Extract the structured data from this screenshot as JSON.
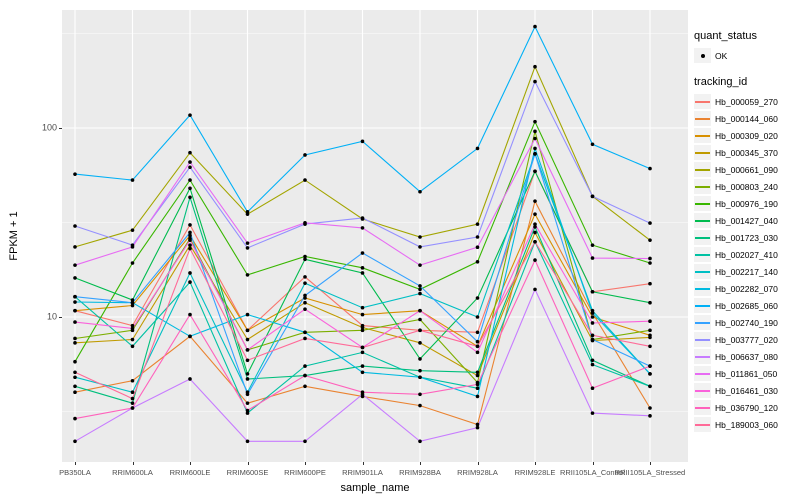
{
  "axes": {
    "x_title": "sample_name",
    "y_title": "FPKM + 1",
    "y_tick_labels": [
      "100",
      "10"
    ]
  },
  "legend": {
    "quant_status_title": "quant_status",
    "quant_ok_label": "OK",
    "tracking_title": "tracking_id"
  },
  "colors": {
    "panel_bg": "#EBEBEB",
    "grid_major": "#FFFFFF",
    "grid_minor": "#F7F7F7",
    "point": "#000000",
    "axis_text": "#4D4D4D",
    "legend_key_bg": "#F2F2F2"
  },
  "chart_data": {
    "type": "line",
    "title": "",
    "xlabel": "sample_name",
    "ylabel": "FPKM + 1",
    "y_scale": "log10",
    "ylim": [
      1.7,
      430
    ],
    "yticks": [
      100,
      10
    ],
    "y_minor_ticks": [
      3.162,
      31.62,
      316.2
    ],
    "grid": true,
    "legend_position": "right",
    "point_marker": "black dot at every sample for quant_status OK",
    "categories": [
      "PB350LA",
      "RRIM600LA",
      "RRIM600LE",
      "RRIM600SE",
      "RRIM600PE",
      "RRIM901LA",
      "RRIM928BA",
      "RRIM928LA",
      "RRIM928LE",
      "RRII105LA_Control",
      "RRII105LA_Stressed"
    ],
    "series": [
      {
        "name": "Hb_000059_270",
        "color": "#F8766D",
        "values": [
          10.8,
          9.0,
          30.7,
          8.5,
          16.3,
          9.0,
          8.5,
          8.3,
          59.0,
          13.6,
          15.0
        ]
      },
      {
        "name": "Hb_000144_060",
        "color": "#EA8331",
        "values": [
          4.0,
          4.6,
          7.9,
          3.5,
          4.3,
          3.8,
          3.4,
          2.7,
          41.0,
          10.5,
          3.3
        ]
      },
      {
        "name": "Hb_000309_020",
        "color": "#D89000",
        "values": [
          10.8,
          11.5,
          27.0,
          8.5,
          12.6,
          10.3,
          10.8,
          7.0,
          35.0,
          10.0,
          8.0
        ]
      },
      {
        "name": "Hb_000345_370",
        "color": "#C09B00",
        "values": [
          7.3,
          7.6,
          24.0,
          7.6,
          11.9,
          8.8,
          7.3,
          4.9,
          28.0,
          7.5,
          7.8
        ]
      },
      {
        "name": "Hb_000661_090",
        "color": "#A3A500",
        "values": [
          23.5,
          28.8,
          74.0,
          35.0,
          53.0,
          33.0,
          26.5,
          31.0,
          211.0,
          43.5,
          25.5
        ]
      },
      {
        "name": "Hb_000803_240",
        "color": "#7CAE00",
        "values": [
          7.7,
          8.5,
          26.0,
          6.7,
          8.3,
          8.5,
          9.7,
          4.5,
          96.0,
          7.6,
          8.5
        ]
      },
      {
        "name": "Hb_000976_190",
        "color": "#39B600",
        "values": [
          5.8,
          19.3,
          53.0,
          16.7,
          20.9,
          18.2,
          14.0,
          19.6,
          108.0,
          24.0,
          19.3
        ]
      },
      {
        "name": "Hb_001427_040",
        "color": "#00BB4E",
        "values": [
          16.1,
          12.3,
          48.0,
          5.0,
          20.2,
          17.1,
          6.0,
          12.6,
          59.0,
          13.6,
          11.9
        ]
      },
      {
        "name": "Hb_001723_030",
        "color": "#00BF7D",
        "values": [
          4.3,
          3.5,
          43.0,
          4.7,
          4.9,
          5.5,
          5.2,
          5.1,
          30.0,
          5.9,
          4.3
        ]
      },
      {
        "name": "Hb_002027_410",
        "color": "#00C1A3",
        "values": [
          12.8,
          7.0,
          15.3,
          3.1,
          5.5,
          6.5,
          4.8,
          4.2,
          25.0,
          5.6,
          4.3
        ]
      },
      {
        "name": "Hb_002217_140",
        "color": "#00BFC4",
        "values": [
          4.8,
          4.0,
          17.1,
          4.0,
          15.1,
          11.2,
          13.3,
          10.0,
          73.0,
          10.8,
          5.0
        ]
      },
      {
        "name": "Hb_002282_070",
        "color": "#00BAE0",
        "values": [
          12.0,
          11.9,
          7.9,
          10.3,
          8.3,
          5.1,
          4.8,
          3.8,
          78.0,
          10.5,
          5.0
        ]
      },
      {
        "name": "Hb_002685_060",
        "color": "#00B0F6",
        "values": [
          57.0,
          53.0,
          117.0,
          36.0,
          72.0,
          85.0,
          46.0,
          78.0,
          344.0,
          82.0,
          61.0
        ]
      },
      {
        "name": "Hb_002740_190",
        "color": "#35A2FF",
        "values": [
          12.8,
          11.9,
          28.0,
          3.9,
          13.0,
          21.8,
          14.6,
          7.4,
          73.0,
          7.6,
          5.5
        ]
      },
      {
        "name": "Hb_003777_020",
        "color": "#9590FF",
        "values": [
          30.3,
          24.0,
          62.0,
          23.2,
          31.0,
          33.4,
          23.5,
          26.5,
          176.0,
          43.5,
          31.4
        ]
      },
      {
        "name": "Hb_006637_080",
        "color": "#C77CFF",
        "values": [
          2.2,
          3.3,
          4.7,
          2.2,
          2.2,
          3.9,
          2.2,
          2.6,
          14.0,
          3.1,
          3.0
        ]
      },
      {
        "name": "Hb_011861_050",
        "color": "#E76BF3",
        "values": [
          18.8,
          23.5,
          66.0,
          24.6,
          31.5,
          29.6,
          18.8,
          23.4,
          88.0,
          20.5,
          20.4
        ]
      },
      {
        "name": "Hb_016461_030",
        "color": "#FA62DB",
        "values": [
          9.4,
          8.7,
          25.5,
          6.7,
          11.0,
          6.9,
          10.8,
          6.5,
          31.0,
          9.3,
          9.5
        ]
      },
      {
        "name": "Hb_036790_120",
        "color": "#FF62BC",
        "values": [
          2.9,
          3.3,
          10.3,
          3.2,
          4.9,
          4.0,
          3.9,
          4.4,
          20.0,
          4.2,
          5.5
        ]
      },
      {
        "name": "Hb_189003_060",
        "color": "#FF6A98",
        "values": [
          5.1,
          3.7,
          23.0,
          5.9,
          7.7,
          6.9,
          8.5,
          7.0,
          25.0,
          8.0,
          7.0
        ]
      }
    ]
  }
}
